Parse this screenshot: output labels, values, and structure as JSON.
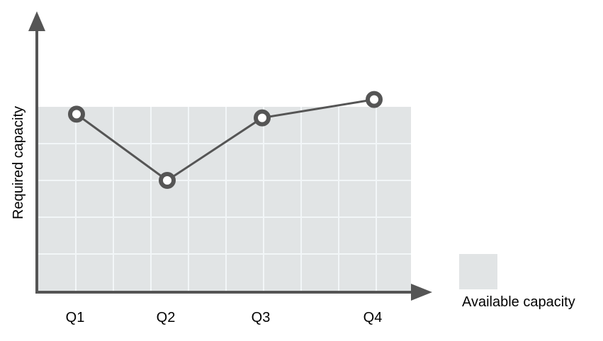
{
  "chart_data": {
    "type": "line",
    "categories": [
      "Q1",
      "Q2",
      "Q3",
      "Q4"
    ],
    "ylabel": "Required capacity",
    "xlabel": "",
    "ylim": [
      0,
      10
    ],
    "grid": true,
    "series": [
      {
        "values": [
          9.6,
          6.0,
          9.4,
          10.4
        ]
      }
    ],
    "available_capacity": 10,
    "legend": {
      "label": "Available capacity",
      "position": "bottom-right"
    },
    "colors": {
      "line": "#555555",
      "marker_fill": "#ffffff",
      "marker_stroke": "#555555",
      "axis": "#555555",
      "area": "#e1e4e5",
      "grid": "#f2f6f8"
    }
  }
}
